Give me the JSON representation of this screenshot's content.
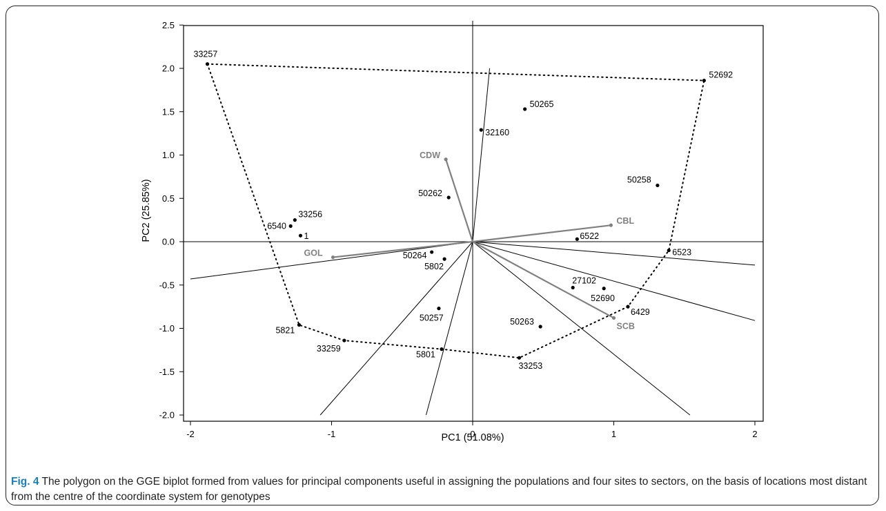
{
  "chart_data": {
    "type": "scatter",
    "xlabel": "PC1 (51.08%)",
    "ylabel": "PC2 (25.85%)",
    "xlim": [
      -2,
      2
    ],
    "ylim": [
      -2,
      2.5
    ],
    "x_ticks": [
      -2,
      -1,
      0,
      1,
      2
    ],
    "y_ticks": [
      -2.0,
      -1.5,
      -1.0,
      -0.5,
      0.0,
      0.5,
      1.0,
      1.5,
      2.0,
      2.5
    ],
    "grid": false,
    "genotypes": [
      {
        "name": "33257",
        "x": -1.88,
        "y": 2.05
      },
      {
        "name": "52692",
        "x": 1.64,
        "y": 1.86
      },
      {
        "name": "50265",
        "x": 0.37,
        "y": 1.53
      },
      {
        "name": "32160",
        "x": 0.06,
        "y": 1.29
      },
      {
        "name": "50258",
        "x": 1.31,
        "y": 0.65
      },
      {
        "name": "50262",
        "x": -0.17,
        "y": 0.51
      },
      {
        "name": "33256",
        "x": -1.26,
        "y": 0.25
      },
      {
        "name": "6540",
        "x": -1.29,
        "y": 0.18
      },
      {
        "name": "1",
        "x": -1.22,
        "y": 0.07
      },
      {
        "name": "6522",
        "x": 0.74,
        "y": 0.03
      },
      {
        "name": "6523",
        "x": 1.39,
        "y": -0.1
      },
      {
        "name": "50264",
        "x": -0.29,
        "y": -0.12
      },
      {
        "name": "5802",
        "x": -0.2,
        "y": -0.2
      },
      {
        "name": "27102",
        "x": 0.71,
        "y": -0.53
      },
      {
        "name": "52690",
        "x": 0.93,
        "y": -0.54
      },
      {
        "name": "6429",
        "x": 1.1,
        "y": -0.75
      },
      {
        "name": "50257",
        "x": -0.24,
        "y": -0.77
      },
      {
        "name": "50263",
        "x": 0.48,
        "y": -0.98
      },
      {
        "name": "5821",
        "x": -1.23,
        "y": -0.96
      },
      {
        "name": "33259",
        "x": -0.91,
        "y": -1.14
      },
      {
        "name": "5801",
        "x": -0.22,
        "y": -1.24
      },
      {
        "name": "33253",
        "x": 0.33,
        "y": -1.34
      }
    ],
    "environments": [
      {
        "name": "CDW",
        "x": -0.19,
        "y": 0.95
      },
      {
        "name": "CBL",
        "x": 0.98,
        "y": 0.19
      },
      {
        "name": "GOL",
        "x": -0.99,
        "y": -0.18
      },
      {
        "name": "SCB",
        "x": 1.0,
        "y": -0.88
      }
    ],
    "polygon": [
      "33257",
      "52692",
      "6523",
      "6429",
      "33253",
      "5801",
      "33259",
      "5821",
      "33257"
    ],
    "sector_rays": [
      {
        "x": 0.12,
        "y": 2.0
      },
      {
        "x": 2.0,
        "y": -0.27
      },
      {
        "x": 2.0,
        "y": -0.91
      },
      {
        "x": 1.54,
        "y": -2.0
      },
      {
        "x": -0.33,
        "y": -2.0
      },
      {
        "x": -1.08,
        "y": -2.0
      },
      {
        "x": -2.0,
        "y": -0.43
      }
    ]
  },
  "caption": {
    "label": "Fig. 4",
    "text": " The polygon on the GGE biplot formed from values for principal components useful in assigning the populations and four sites to sectors, on the basis of locations most distant from the centre of the coordinate system for genotypes"
  }
}
